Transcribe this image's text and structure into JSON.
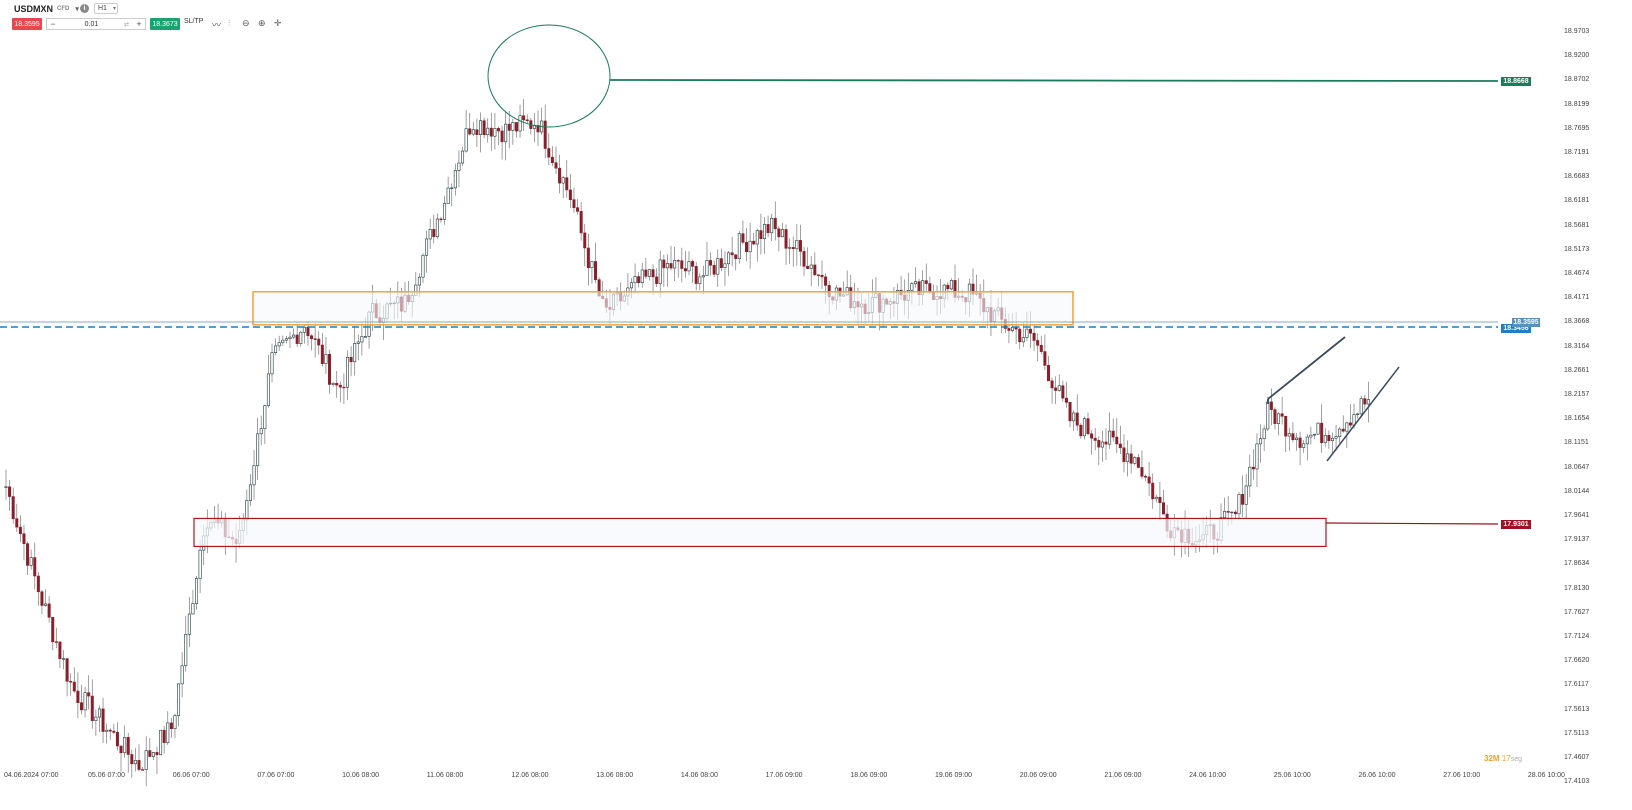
{
  "toolbar": {
    "symbol": "USDMXN",
    "symbol_sub": "CFD",
    "timeframe": "H1",
    "sell_price": "18.3595",
    "quantity": "0.01",
    "buy_price": "18.3673",
    "sltp_label": "SL/TP"
  },
  "price_axis": {
    "labels": [
      "18.9703",
      "18.9200",
      "18.8702",
      "18.8199",
      "18.7695",
      "18.7191",
      "18.6683",
      "18.6181",
      "18.5681",
      "18.5173",
      "18.4674",
      "18.4171",
      "18.3668",
      "18.3164",
      "18.2661",
      "18.2157",
      "18.1654",
      "18.1151",
      "18.0647",
      "18.0144",
      "17.9641",
      "17.9137",
      "17.8634",
      "17.8130",
      "17.7627",
      "17.7124",
      "17.6620",
      "17.6117",
      "17.5613",
      "17.5113",
      "17.4607",
      "17.4103"
    ]
  },
  "time_axis": {
    "labels": [
      "04.06.2024 07:00",
      "05.06 07:00",
      "06.06 07:00",
      "07.06 07:00",
      "10.06 08:00",
      "11.06 08:00",
      "12.06 08:00",
      "13.06 08:00",
      "14.06 08:00",
      "17.06 09:00",
      "18.06 09:00",
      "19.06 09:00",
      "20.06 09:00",
      "21.06 09:00",
      "24.06 10:00",
      "25.06 10:00",
      "26.06 10:00",
      "27.06 10:00",
      "28.06 10:00"
    ]
  },
  "price_tags": {
    "green_level": "18.8668",
    "blue_level": "18.3456",
    "current_price": "18.3595",
    "red_level": "17.9301"
  },
  "colors": {
    "bull": "#1b3a3a",
    "bear": "#8a1f2a",
    "green_tag": "#1a7a5a",
    "blue_tag": "#1f7fc4",
    "red_tag": "#a01020",
    "orange_zone": "#f2a23c",
    "red_zone": "#b0151f"
  },
  "timer": {
    "minutes": "32",
    "m_unit": "M",
    "seconds": "17",
    "s_unit": "seg"
  },
  "chart_data": {
    "type": "candlestick",
    "symbol": "USDMXN",
    "timeframe": "H1",
    "ylim": [
      17.41,
      18.99
    ],
    "path": [
      [
        "04.06 07:00",
        18.02,
        17.74,
        17.98
      ],
      [
        "04.06 12:00",
        17.8,
        17.72,
        17.86
      ],
      [
        "05.06 04:00",
        17.6,
        17.58,
        17.62
      ],
      [
        "05.06 12:00",
        17.52,
        17.47,
        17.52
      ],
      [
        "06.06 04:00",
        17.44,
        17.44,
        17.5
      ],
      [
        "06.06 10:00",
        17.52,
        17.49,
        17.56
      ],
      [
        "06.06 12:00",
        17.96,
        17.87,
        17.92
      ],
      [
        "06.06 20:00",
        17.9,
        17.84,
        17.94
      ],
      [
        "07.06 07:00",
        18.28,
        18.37,
        18.32
      ],
      [
        "07.06 16:00",
        18.36,
        18.3,
        18.4
      ],
      [
        "10.06 02:00",
        18.22,
        18.22,
        18.36
      ],
      [
        "10.06 08:00",
        18.38,
        18.34,
        18.44
      ],
      [
        "11.06 00:00",
        18.4,
        18.46,
        18.52
      ],
      [
        "11.06 10:00",
        18.58,
        18.6,
        18.68
      ],
      [
        "12.06 00:00",
        18.78,
        18.82,
        18.76
      ],
      [
        "12.06 08:00",
        18.76,
        18.8,
        18.77
      ],
      [
        "12.06 14:00",
        18.78,
        18.76,
        18.8
      ],
      [
        "12.06 20:00",
        18.62,
        18.56,
        18.44
      ],
      [
        "13.06 08:00",
        18.38,
        18.4,
        18.42
      ],
      [
        "13.06 12:00",
        18.44,
        18.62,
        18.58
      ],
      [
        "14.06 00:00",
        18.48,
        18.45,
        18.5
      ],
      [
        "14.06 08:00",
        18.46,
        18.47,
        18.5
      ],
      [
        "14.06 20:00",
        18.52,
        18.6,
        18.55
      ],
      [
        "17.06 04:00",
        18.56,
        18.54,
        18.53
      ],
      [
        "17.06 12:00",
        18.5,
        18.48,
        18.45
      ],
      [
        "17.06 20:00",
        18.42,
        18.38,
        18.4
      ],
      [
        "18.06 08:00",
        18.4,
        18.39,
        18.42
      ],
      [
        "18.06 20:00",
        18.42,
        18.44,
        18.41
      ],
      [
        "19.06 08:00",
        18.43,
        18.42,
        18.44
      ],
      [
        "19.06 20:00",
        18.42,
        18.4,
        18.38
      ],
      [
        "20.06 08:00",
        18.36,
        18.36,
        18.34
      ],
      [
        "20.06 16:00",
        18.32,
        18.24,
        18.2
      ],
      [
        "21.06 00:00",
        18.16,
        18.12,
        18.1
      ],
      [
        "21.06 08:00",
        18.12,
        18.11,
        18.14
      ],
      [
        "21.06 16:00",
        18.08,
        18.04,
        17.96
      ],
      [
        "24.06 00:00",
        17.94,
        17.92,
        17.9
      ],
      [
        "24.06 08:00",
        17.91,
        17.9,
        17.93
      ],
      [
        "24.06 16:00",
        17.96,
        18.06,
        18.0
      ],
      [
        "25.06 00:00",
        18.18,
        18.14,
        18.12
      ],
      [
        "25.06 08:00",
        18.12,
        18.1,
        18.08
      ],
      [
        "25.06 16:00",
        18.14,
        18.2,
        18.16
      ],
      [
        "26.06 00:00",
        18.2,
        18.34,
        18.36
      ]
    ],
    "annotations": {
      "resistance_zone": [
        18.34,
        18.4
      ],
      "support_zone": [
        17.9,
        17.96
      ],
      "green_line": 18.8668,
      "blue_line": 18.3456,
      "red_line": 17.9301
    }
  }
}
